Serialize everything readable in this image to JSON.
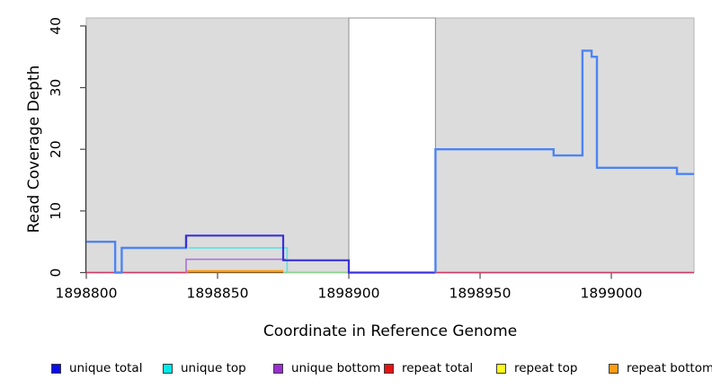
{
  "chart_data": {
    "type": "line",
    "title": "",
    "xlabel": "Coordinate in Reference Genome",
    "ylabel": "Read Coverage Depth",
    "xlim": [
      1898800,
      1899031.5
    ],
    "ylim": [
      0,
      41.3
    ],
    "x_ticks": [
      1898800,
      1898850,
      1898900,
      1898950,
      1899000
    ],
    "y_ticks": [
      0,
      10,
      20,
      30,
      40
    ],
    "grid": false,
    "legend_position": "bottom",
    "background_regions": [
      {
        "name": "shaded-region-full",
        "x0": 1898800,
        "x1": 1899031.5,
        "fill": "#dcdcdc",
        "stroke": "#b4b4b4"
      },
      {
        "name": "gap-region",
        "x0": 1898900,
        "x1": 1898933,
        "fill": "#ffffff",
        "stroke": "#8f8f8f"
      }
    ],
    "lines": [
      {
        "name": "repeat-total-left",
        "color": "#d23a64",
        "width": 1.6,
        "points": [
          [
            1898800,
            0
          ],
          [
            1898839,
            0
          ]
        ]
      },
      {
        "name": "repeat-total-right",
        "color": "#d23a64",
        "width": 1.6,
        "points": [
          [
            1898933,
            0
          ],
          [
            1899031.5,
            0
          ]
        ]
      },
      {
        "name": "gap-low-segment",
        "color": "#8fd08f",
        "width": 1.5,
        "points": [
          [
            1898875,
            0.05
          ],
          [
            1898900,
            0.05
          ]
        ]
      },
      {
        "name": "repeat-bottom",
        "color": "#ff9a0d",
        "width": 2.6,
        "points": [
          [
            1898838,
            0.2
          ],
          [
            1898875,
            0.2
          ]
        ]
      },
      {
        "name": "unique-bottom",
        "color": "#ad74dc",
        "width": 1.7,
        "points": [
          [
            1898838,
            0
          ],
          [
            1898838,
            2.15
          ],
          [
            1898876,
            2.15
          ]
        ]
      },
      {
        "name": "unique-top",
        "color": "#5fe2e2",
        "width": 1.7,
        "points": [
          [
            1898839,
            4
          ],
          [
            1898876.5,
            4
          ],
          [
            1898876.5,
            0
          ]
        ]
      },
      {
        "name": "coverage-total-left",
        "color": "#4d84f2",
        "width": 2.4,
        "points": [
          [
            1898800,
            5
          ],
          [
            1898811,
            5
          ],
          [
            1898811,
            0
          ],
          [
            1898813.5,
            0
          ],
          [
            1898813.5,
            4
          ],
          [
            1898838,
            4
          ],
          [
            1898838,
            6
          ]
        ]
      },
      {
        "name": "unique-total",
        "color": "#3a31d9",
        "width": 2.2,
        "points": [
          [
            1898838,
            4
          ],
          [
            1898838,
            6
          ],
          [
            1898875,
            6
          ],
          [
            1898875,
            2
          ],
          [
            1898900,
            2
          ],
          [
            1898900,
            0
          ],
          [
            1898933,
            0
          ]
        ]
      },
      {
        "name": "coverage-total-right",
        "color": "#4d84f2",
        "width": 2.4,
        "points": [
          [
            1898933,
            0
          ],
          [
            1898933,
            20
          ],
          [
            1898978,
            20
          ],
          [
            1898978,
            19
          ],
          [
            1898989,
            19
          ],
          [
            1898989,
            36
          ],
          [
            1898992.5,
            36
          ],
          [
            1898992.5,
            35
          ],
          [
            1898994.5,
            35
          ],
          [
            1898994.5,
            17
          ],
          [
            1899025,
            17
          ],
          [
            1899025,
            16
          ],
          [
            1899031.5,
            16
          ]
        ]
      }
    ],
    "legend": [
      {
        "label": "unique total",
        "color": "#0c0cee"
      },
      {
        "label": "unique top",
        "color": "#00e8e8"
      },
      {
        "label": "unique bottom",
        "color": "#9a30d0"
      },
      {
        "label": "repeat total",
        "color": "#ea1111"
      },
      {
        "label": "repeat top",
        "color": "#fcfc1c"
      },
      {
        "label": "repeat bottom",
        "color": "#ff9d12"
      }
    ]
  },
  "style": {
    "axis_color": "#333333",
    "tick_color": "#4a4a4a",
    "tick_label_color": "#000000"
  }
}
